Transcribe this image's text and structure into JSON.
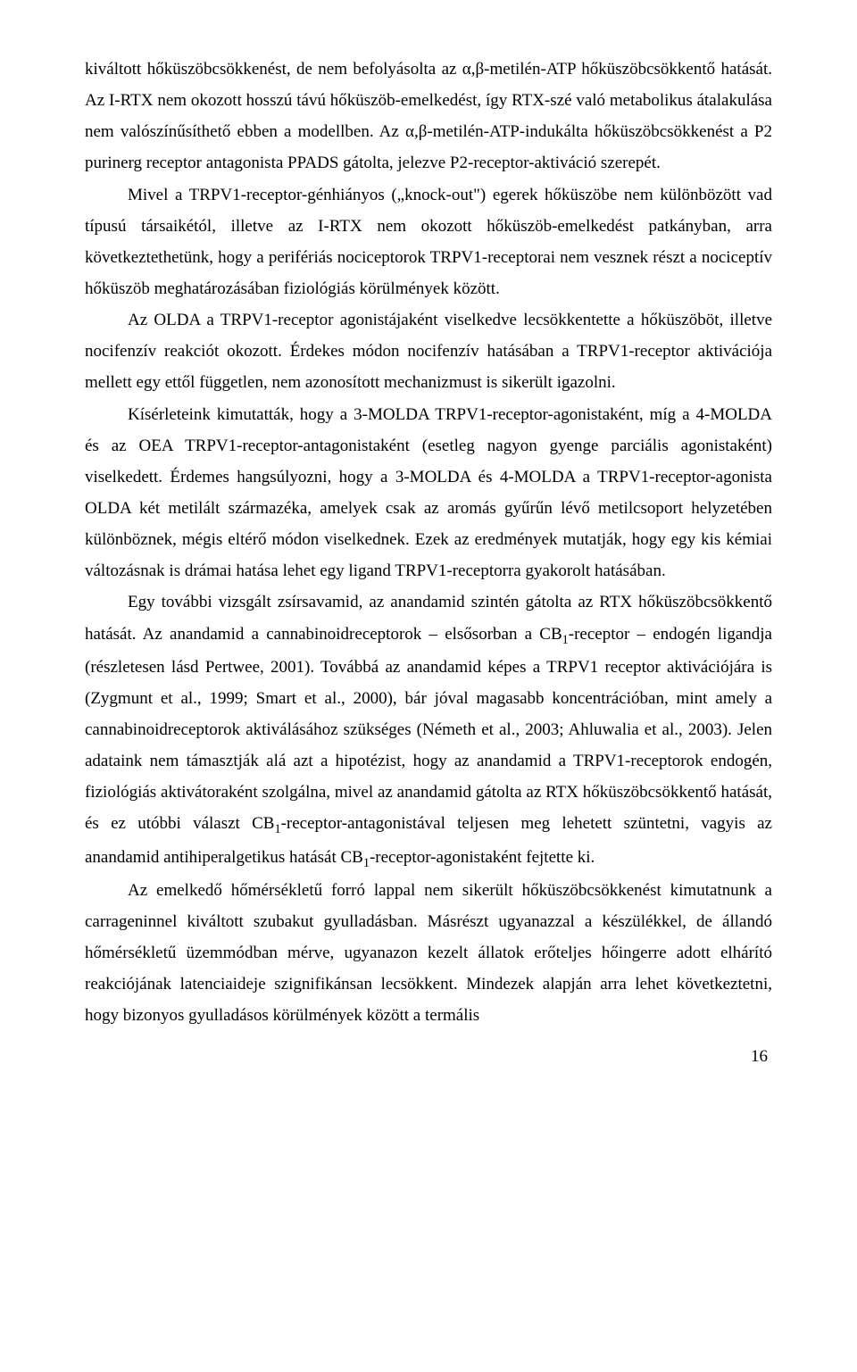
{
  "paragraphs": {
    "p1": "kiváltott hőküszöbcsökkenést, de nem befolyásolta az α,β-metilén-ATP hőküszöbcsökkentő hatását. Az I-RTX nem okozott hosszú távú hőküszöb-emelkedést, így RTX-szé való metabolikus átalakulása nem valószínűsíthető ebben a modellben. Az α,β-metilén-ATP-indukálta hőküszöbcsökkenést a P2 purinerg receptor antagonista PPADS gátolta, jelezve P2-receptor-aktiváció szerepét.",
    "p2": "Mivel a TRPV1-receptor-génhiányos („knock-out\") egerek hőküszöbe nem különbözött vad típusú társaikétól, illetve az I-RTX nem okozott hőküszöb-emelkedést patkányban, arra következtethetünk, hogy a perifériás nociceptorok TRPV1-receptorai nem vesznek részt a nociceptív hőküszöb meghatározásában fiziológiás körülmények között.",
    "p3": "Az OLDA a TRPV1-receptor agonistájaként viselkedve lecsökkentette a hőküszöböt, illetve nocifenzív reakciót okozott. Érdekes módon nocifenzív hatásában a TRPV1-receptor aktivációja mellett egy ettől független, nem azonosított mechanizmust is sikerült igazolni.",
    "p4": "Kísérleteink kimutatták, hogy a 3-MOLDA TRPV1-receptor-agonistaként, míg a 4-MOLDA és az OEA TRPV1-receptor-antagonistaként (esetleg nagyon gyenge parciális agonistaként) viselkedett. Érdemes hangsúlyozni, hogy a 3-MOLDA és 4-MOLDA a TRPV1-receptor-agonista OLDA két metilált származéka, amelyek csak az aromás gyűrűn lévő metilcsoport helyzetében különböznek, mégis eltérő módon viselkednek. Ezek az eredmények mutatják, hogy egy kis kémiai változásnak is drámai hatása lehet egy ligand TRPV1-receptorra gyakorolt hatásában.",
    "p5a": "Egy további vizsgált zsírsavamid, az anandamid szintén gátolta az RTX hőküszöbcsökkentő hatását. Az anandamid a cannabinoidreceptorok – elsősorban a CB",
    "p5b": "-receptor – endogén ligandja (részletesen lásd Pertwee, 2001). Továbbá az anandamid képes a TRPV1 receptor aktivációjára is (Zygmunt et al., 1999; Smart et al., 2000), bár jóval magasabb koncentrációban, mint amely a cannabinoidreceptorok aktiválásához szükséges (Németh et al., 2003; Ahluwalia et al., 2003). Jelen adataink nem támasztják alá azt a hipotézist, hogy az anandamid a TRPV1-receptorok endogén, fiziológiás aktivátoraként szolgálna, mivel az anandamid gátolta az RTX hőküszöbcsökkentő hatását, és ez utóbbi választ CB",
    "p5c": "-receptor-antagonistával teljesen meg lehetett szüntetni, vagyis az anandamid antihiperalgetikus hatását CB",
    "p5d": "-receptor-agonistaként fejtette ki.",
    "p6": "Az emelkedő hőmérsékletű forró lappal nem sikerült hőküszöbcsökkenést kimutatnunk a carrageninnel kiváltott szubakut gyulladásban. Másrészt ugyanazzal a készülékkel, de állandó hőmérsékletű üzemmódban mérve, ugyanazon kezelt állatok erőteljes hőingerre adott elhárító reakciójának latenciaideje szignifikánsan lecsökkent. Mindezek alapján arra lehet következtetni, hogy bizonyos gyulladásos körülmények között a termális"
  },
  "sub1": "1",
  "pageNumber": "16"
}
